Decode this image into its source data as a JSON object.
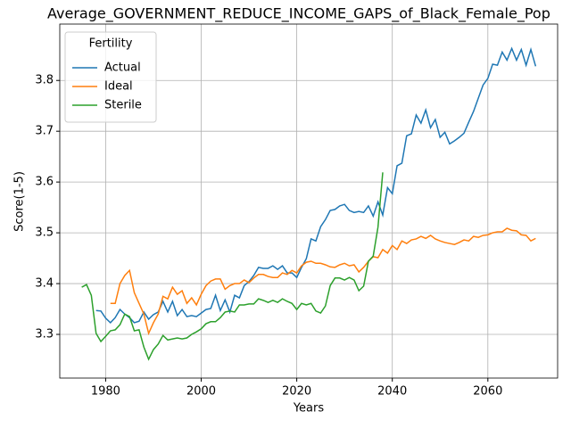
{
  "chart_data": {
    "type": "line",
    "title": "Average_GOVERNMENT_REDUCE_INCOME_GAPS_of_Black_Female_Pop",
    "x_label": "Years",
    "y_label": "Score(1-5)",
    "legend_title": "Fertility",
    "legend": "upper left",
    "grid": true,
    "xlim": [
      1970.4,
      2074.6
    ],
    "ylim": [
      3.214,
      3.911
    ],
    "xticks": [
      1980,
      2000,
      2020,
      2040,
      2060
    ],
    "yticks": [
      3.3,
      3.4,
      3.5,
      3.6,
      3.7,
      3.8
    ],
    "x": [
      1975,
      1976,
      1977,
      1978,
      1979,
      1980,
      1981,
      1982,
      1983,
      1984,
      1985,
      1986,
      1987,
      1988,
      1989,
      1990,
      1991,
      1992,
      1993,
      1994,
      1995,
      1996,
      1997,
      1998,
      1999,
      2000,
      2001,
      2002,
      2003,
      2004,
      2005,
      2006,
      2007,
      2008,
      2009,
      2010,
      2011,
      2012,
      2013,
      2014,
      2015,
      2016,
      2017,
      2018,
      2019,
      2020,
      2021,
      2022,
      2023,
      2024,
      2025,
      2026,
      2027,
      2028,
      2029,
      2030,
      2031,
      2032,
      2033,
      2034,
      2035,
      2036,
      2037,
      2038,
      2039,
      2040,
      2041,
      2042,
      2043,
      2044,
      2045,
      2046,
      2047,
      2048,
      2049,
      2050,
      2051,
      2052,
      2053,
      2054,
      2055,
      2056,
      2057,
      2058,
      2059,
      2060,
      2061,
      2062,
      2063,
      2064,
      2065,
      2066,
      2067,
      2068,
      2069,
      2070
    ],
    "series": [
      {
        "name": "Actual",
        "color": "#1f77b4",
        "values": [
          null,
          null,
          null,
          3.347,
          3.346,
          3.332,
          3.323,
          3.333,
          3.349,
          3.34,
          3.333,
          3.323,
          3.326,
          3.344,
          3.33,
          3.339,
          3.344,
          3.365,
          3.344,
          3.365,
          3.337,
          3.349,
          3.335,
          3.337,
          3.335,
          3.342,
          3.349,
          3.351,
          3.377,
          3.347,
          3.368,
          3.344,
          3.377,
          3.372,
          3.396,
          3.404,
          3.416,
          3.432,
          3.43,
          3.43,
          3.435,
          3.428,
          3.435,
          3.421,
          3.421,
          3.412,
          3.432,
          3.449,
          3.488,
          3.484,
          3.512,
          3.526,
          3.544,
          3.546,
          3.553,
          3.556,
          3.544,
          3.54,
          3.542,
          3.54,
          3.553,
          3.533,
          3.561,
          3.535,
          3.589,
          3.577,
          3.632,
          3.637,
          3.691,
          3.695,
          3.732,
          3.716,
          3.742,
          3.707,
          3.723,
          3.688,
          3.698,
          3.675,
          3.681,
          3.688,
          3.696,
          3.718,
          3.739,
          3.765,
          3.791,
          3.804,
          3.832,
          3.83,
          3.856,
          3.84,
          3.863,
          3.84,
          3.861,
          3.83,
          3.861,
          3.828
        ]
      },
      {
        "name": "Ideal",
        "color": "#ff7f0e",
        "values": [
          null,
          null,
          null,
          null,
          null,
          null,
          3.361,
          3.361,
          3.4,
          3.416,
          3.426,
          3.382,
          3.361,
          3.34,
          3.302,
          3.323,
          3.34,
          3.375,
          3.37,
          3.393,
          3.379,
          3.386,
          3.361,
          3.372,
          3.358,
          3.379,
          3.396,
          3.405,
          3.409,
          3.409,
          3.389,
          3.396,
          3.4,
          3.4,
          3.407,
          3.402,
          3.411,
          3.418,
          3.418,
          3.414,
          3.412,
          3.412,
          3.421,
          3.418,
          3.426,
          3.421,
          3.435,
          3.442,
          3.444,
          3.44,
          3.44,
          3.437,
          3.433,
          3.432,
          3.437,
          3.44,
          3.435,
          3.437,
          3.423,
          3.432,
          3.444,
          3.453,
          3.451,
          3.467,
          3.46,
          3.475,
          3.467,
          3.484,
          3.479,
          3.486,
          3.488,
          3.493,
          3.489,
          3.495,
          3.488,
          3.484,
          3.481,
          3.479,
          3.477,
          3.481,
          3.486,
          3.484,
          3.493,
          3.491,
          3.495,
          3.496,
          3.5,
          3.502,
          3.502,
          3.509,
          3.505,
          3.504,
          3.496,
          3.495,
          3.484,
          3.489
        ]
      },
      {
        "name": "Sterile",
        "color": "#2ca02c",
        "values": [
          3.393,
          3.398,
          3.377,
          3.302,
          3.286,
          3.296,
          3.307,
          3.309,
          3.319,
          3.34,
          3.335,
          3.307,
          3.309,
          3.275,
          3.251,
          3.27,
          3.281,
          3.298,
          3.289,
          3.291,
          3.293,
          3.291,
          3.293,
          3.3,
          3.305,
          3.311,
          3.321,
          3.325,
          3.325,
          3.333,
          3.344,
          3.346,
          3.344,
          3.358,
          3.358,
          3.36,
          3.36,
          3.37,
          3.367,
          3.363,
          3.367,
          3.363,
          3.37,
          3.365,
          3.361,
          3.349,
          3.361,
          3.358,
          3.361,
          3.346,
          3.342,
          3.356,
          3.396,
          3.411,
          3.411,
          3.407,
          3.412,
          3.407,
          3.386,
          3.395,
          3.444,
          3.454,
          3.511,
          3.619,
          null,
          null,
          null,
          null,
          null,
          null,
          null,
          null,
          null,
          null,
          null,
          null,
          null,
          null,
          null,
          null,
          null,
          null,
          null,
          null,
          null,
          null,
          null,
          null,
          null,
          null,
          null,
          null,
          null,
          null,
          null,
          null
        ]
      }
    ]
  }
}
